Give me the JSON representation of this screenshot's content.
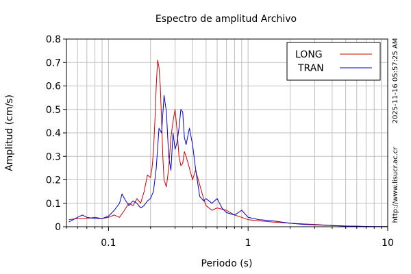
{
  "side_labels": {
    "timestamp": "2025-11-16 05:57:25 AM",
    "url": "http://www.lisucr.ac.cr"
  },
  "chart_data": {
    "type": "line",
    "title": "Espectro de amplitud Archivo",
    "xlabel": "Periodo (s)",
    "ylabel": "Amplitud (cm/s)",
    "xscale": "log",
    "xlim": [
      0.05,
      10
    ],
    "ylim": [
      0,
      0.8
    ],
    "xticks": [
      0.1,
      1,
      10
    ],
    "xtick_labels": [
      "0.1",
      "1",
      "10"
    ],
    "yticks": [
      0,
      0.1,
      0.2,
      0.3,
      0.4,
      0.5,
      0.6,
      0.7,
      0.8
    ],
    "ytick_labels": [
      "0",
      "0.1",
      "0.2",
      "0.3",
      "0.4",
      "0.5",
      "0.6",
      "0.7",
      "0.8"
    ],
    "grid": true,
    "legend_position": "top-right",
    "series": [
      {
        "name": "LONG",
        "color": "#cc0000",
        "x": [
          0.052,
          0.06,
          0.07,
          0.08,
          0.09,
          0.1,
          0.11,
          0.12,
          0.13,
          0.14,
          0.15,
          0.16,
          0.17,
          0.18,
          0.19,
          0.2,
          0.205,
          0.21,
          0.215,
          0.22,
          0.225,
          0.23,
          0.235,
          0.24,
          0.245,
          0.25,
          0.26,
          0.27,
          0.28,
          0.29,
          0.3,
          0.31,
          0.32,
          0.33,
          0.34,
          0.35,
          0.36,
          0.38,
          0.4,
          0.42,
          0.44,
          0.46,
          0.48,
          0.5,
          0.55,
          0.6,
          0.7,
          0.8,
          0.9,
          1.0,
          1.2,
          1.5,
          2.0,
          2.5,
          3.0,
          4.0,
          5.0,
          6.0,
          8.0,
          10.0
        ],
        "y": [
          0.03,
          0.035,
          0.035,
          0.04,
          0.035,
          0.04,
          0.05,
          0.04,
          0.07,
          0.1,
          0.09,
          0.12,
          0.1,
          0.15,
          0.22,
          0.21,
          0.25,
          0.32,
          0.45,
          0.6,
          0.71,
          0.68,
          0.6,
          0.45,
          0.3,
          0.2,
          0.17,
          0.25,
          0.38,
          0.45,
          0.5,
          0.41,
          0.3,
          0.26,
          0.27,
          0.32,
          0.3,
          0.25,
          0.2,
          0.24,
          0.2,
          0.16,
          0.12,
          0.09,
          0.07,
          0.08,
          0.07,
          0.05,
          0.04,
          0.03,
          0.025,
          0.02,
          0.015,
          0.012,
          0.01,
          0.005,
          0.003,
          0.002,
          0.001,
          0.001
        ]
      },
      {
        "name": "TRAN",
        "color": "#0000cc",
        "x": [
          0.052,
          0.06,
          0.065,
          0.07,
          0.08,
          0.09,
          0.1,
          0.11,
          0.12,
          0.125,
          0.13,
          0.14,
          0.15,
          0.16,
          0.17,
          0.18,
          0.19,
          0.2,
          0.21,
          0.22,
          0.23,
          0.24,
          0.25,
          0.26,
          0.27,
          0.28,
          0.29,
          0.3,
          0.31,
          0.32,
          0.33,
          0.34,
          0.35,
          0.36,
          0.38,
          0.4,
          0.42,
          0.45,
          0.48,
          0.5,
          0.55,
          0.6,
          0.65,
          0.7,
          0.8,
          0.9,
          1.0,
          1.2,
          1.5,
          2.0,
          2.5,
          3.0,
          4.0,
          5.0,
          6.0,
          8.0,
          10.0
        ],
        "y": [
          0.02,
          0.04,
          0.05,
          0.04,
          0.035,
          0.035,
          0.045,
          0.07,
          0.1,
          0.14,
          0.12,
          0.09,
          0.11,
          0.1,
          0.08,
          0.09,
          0.11,
          0.12,
          0.15,
          0.25,
          0.42,
          0.4,
          0.56,
          0.49,
          0.3,
          0.24,
          0.4,
          0.33,
          0.36,
          0.42,
          0.5,
          0.49,
          0.38,
          0.35,
          0.42,
          0.35,
          0.25,
          0.13,
          0.11,
          0.12,
          0.1,
          0.12,
          0.08,
          0.06,
          0.05,
          0.07,
          0.04,
          0.03,
          0.025,
          0.015,
          0.01,
          0.008,
          0.005,
          0.003,
          0.002,
          0.001,
          0.001
        ]
      }
    ]
  }
}
